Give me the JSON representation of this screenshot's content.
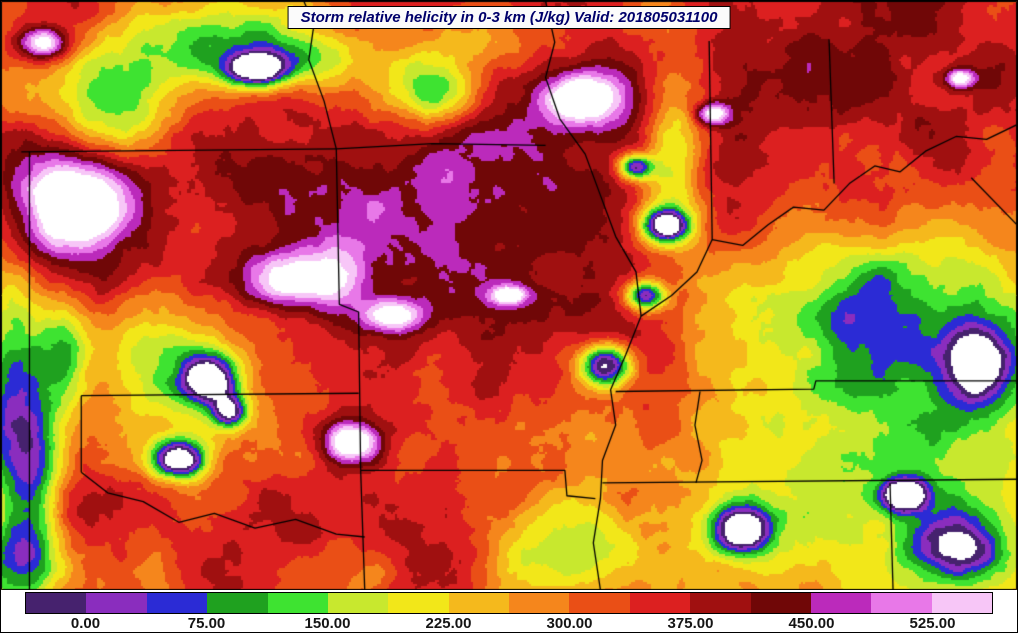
{
  "title_bar": {
    "text": "Storm relative helicity in 0-3 km (J/kg) Valid: 201805031100"
  },
  "chart_data": {
    "type": "heatmap",
    "title": "Storm relative helicity in 0-3 km (J/kg)",
    "valid": "201805031100",
    "units": "J/kg",
    "legend_position": "bottom",
    "colorbar": {
      "range": [
        -37.5,
        562.5
      ],
      "step": 37.5,
      "segment_colors": [
        "#46226e",
        "#8a2dbe",
        "#2b2bd5",
        "#1fa11f",
        "#3ee331",
        "#c8e82e",
        "#f2e719",
        "#f5b91c",
        "#f5861c",
        "#ea4f16",
        "#dc2020",
        "#a01010",
        "#700707",
        "#bb2abb",
        "#e878e8",
        "#f7c6f7"
      ],
      "over_color": "#ffffff",
      "under_color": "#ffffff",
      "tick_labels": [
        "0.00",
        "75.00",
        "150.00",
        "225.00",
        "300.00",
        "375.00",
        "450.00",
        "525.00"
      ],
      "tick_values": [
        0,
        75,
        150,
        225,
        300,
        375,
        450,
        525
      ]
    },
    "field": {
      "base": 330,
      "noise": {
        "freq": 14,
        "octaves": 5,
        "persistence": 0.55,
        "amplitude": 100,
        "seed": 11
      },
      "features": [
        {
          "x": 0.069,
          "y": 0.345,
          "rx": 0.042,
          "ry": 0.058,
          "amp": 380
        },
        {
          "x": 0.04,
          "y": 0.07,
          "rx": 0.018,
          "ry": 0.02,
          "amp": 300
        },
        {
          "x": 0.3,
          "y": 0.47,
          "rx": 0.036,
          "ry": 0.036,
          "amp": 270
        },
        {
          "x": 0.385,
          "y": 0.535,
          "rx": 0.022,
          "ry": 0.02,
          "amp": 230
        },
        {
          "x": 0.345,
          "y": 0.75,
          "rx": 0.02,
          "ry": 0.026,
          "amp": 330
        },
        {
          "x": 0.5,
          "y": 0.5,
          "rx": 0.012,
          "ry": 0.012,
          "amp": 260
        },
        {
          "x": 0.575,
          "y": 0.165,
          "rx": 0.026,
          "ry": 0.03,
          "amp": 330
        },
        {
          "x": 0.7,
          "y": 0.19,
          "rx": 0.012,
          "ry": 0.014,
          "amp": 240
        },
        {
          "x": 0.945,
          "y": 0.13,
          "rx": 0.01,
          "ry": 0.012,
          "amp": 250
        },
        {
          "x": 0.45,
          "y": 0.33,
          "rx": 0.13,
          "ry": 0.13,
          "amp": 85
        },
        {
          "x": 0.63,
          "y": 0.2,
          "rx": 0.09,
          "ry": 0.11,
          "amp": 75
        },
        {
          "x": 0.88,
          "y": 0.16,
          "rx": 0.11,
          "ry": 0.13,
          "amp": 70
        },
        {
          "x": 0.29,
          "y": 0.34,
          "rx": 0.09,
          "ry": 0.08,
          "amp": 55
        },
        {
          "x": 0.52,
          "y": 0.6,
          "rx": 0.09,
          "ry": 0.09,
          "amp": 70
        },
        {
          "x": 0.13,
          "y": 0.47,
          "rx": 0.05,
          "ry": 0.06,
          "amp": 70
        },
        {
          "x": 0.22,
          "y": 0.28,
          "rx": 0.07,
          "ry": 0.06,
          "amp": 50
        },
        {
          "x": 0.44,
          "y": 0.9,
          "rx": 0.08,
          "ry": 0.07,
          "amp": 60
        },
        {
          "x": 0.84,
          "y": 0.8,
          "rx": 0.14,
          "ry": 0.18,
          "amp": -190
        },
        {
          "x": 0.88,
          "y": 0.52,
          "rx": 0.1,
          "ry": 0.11,
          "amp": -200
        },
        {
          "x": 0.21,
          "y": 0.07,
          "rx": 0.06,
          "ry": 0.05,
          "amp": -210
        },
        {
          "x": 0.3,
          "y": 0.095,
          "rx": 0.04,
          "ry": 0.04,
          "amp": -160
        },
        {
          "x": 0.425,
          "y": 0.155,
          "rx": 0.03,
          "ry": 0.04,
          "amp": -270
        },
        {
          "x": 0.47,
          "y": 0.065,
          "rx": 0.05,
          "ry": 0.04,
          "amp": -130
        },
        {
          "x": 0.16,
          "y": 0.6,
          "rx": 0.045,
          "ry": 0.09,
          "amp": -180
        },
        {
          "x": 0.01,
          "y": 0.73,
          "rx": 0.025,
          "ry": 0.14,
          "amp": -280
        },
        {
          "x": 0.06,
          "y": 0.6,
          "rx": 0.02,
          "ry": 0.07,
          "amp": -230
        },
        {
          "x": 0.035,
          "y": 0.82,
          "rx": 0.018,
          "ry": 0.1,
          "amp": -150
        },
        {
          "x": 0.02,
          "y": 0.95,
          "rx": 0.03,
          "ry": 0.05,
          "amp": -170
        },
        {
          "x": 0.55,
          "y": 0.93,
          "rx": 0.05,
          "ry": 0.06,
          "amp": -180
        },
        {
          "x": 0.115,
          "y": 0.17,
          "rx": 0.04,
          "ry": 0.07,
          "amp": -220
        },
        {
          "x": 0.665,
          "y": 0.25,
          "rx": 0.025,
          "ry": 0.12,
          "amp": -200
        },
        {
          "x": 0.25,
          "y": 0.115,
          "rx": 0.022,
          "ry": 0.02,
          "amp": -380
        },
        {
          "x": 0.205,
          "y": 0.645,
          "rx": 0.02,
          "ry": 0.03,
          "amp": -420
        },
        {
          "x": 0.175,
          "y": 0.78,
          "rx": 0.018,
          "ry": 0.022,
          "amp": -400
        },
        {
          "x": 0.225,
          "y": 0.7,
          "rx": 0.012,
          "ry": 0.02,
          "amp": -320
        },
        {
          "x": 0.655,
          "y": 0.38,
          "rx": 0.016,
          "ry": 0.02,
          "amp": -400
        },
        {
          "x": 0.635,
          "y": 0.5,
          "rx": 0.014,
          "ry": 0.018,
          "amp": -380
        },
        {
          "x": 0.595,
          "y": 0.62,
          "rx": 0.018,
          "ry": 0.025,
          "amp": -420
        },
        {
          "x": 0.625,
          "y": 0.28,
          "rx": 0.012,
          "ry": 0.015,
          "amp": -330
        },
        {
          "x": 0.73,
          "y": 0.9,
          "rx": 0.02,
          "ry": 0.028,
          "amp": -400
        },
        {
          "x": 0.89,
          "y": 0.84,
          "rx": 0.016,
          "ry": 0.02,
          "amp": -380
        },
        {
          "x": 0.965,
          "y": 0.62,
          "rx": 0.022,
          "ry": 0.05,
          "amp": -310
        },
        {
          "x": 0.945,
          "y": 0.93,
          "rx": 0.03,
          "ry": 0.04,
          "amp": -270
        }
      ]
    },
    "borders": [
      [
        [
          0.02,
          0.256
        ],
        [
          0.33,
          0.251
        ]
      ],
      [
        [
          0.33,
          0.251
        ],
        [
          0.425,
          0.242
        ],
        [
          0.536,
          0.245
        ]
      ],
      [
        [
          0.33,
          0.251
        ],
        [
          0.318,
          0.17
        ],
        [
          0.303,
          0.1
        ],
        [
          0.308,
          0.04
        ],
        [
          0.298,
          0.0
        ]
      ],
      [
        [
          0.33,
          0.251
        ],
        [
          0.333,
          0.515
        ],
        [
          0.352,
          0.528
        ],
        [
          0.354,
          0.797
        ]
      ],
      [
        [
          0.079,
          0.67
        ],
        [
          0.352,
          0.666
        ]
      ],
      [
        [
          0.079,
          0.67
        ],
        [
          0.079,
          0.8
        ]
      ],
      [
        [
          0.079,
          0.8
        ],
        [
          0.105,
          0.835
        ],
        [
          0.14,
          0.85
        ],
        [
          0.175,
          0.885
        ],
        [
          0.21,
          0.87
        ],
        [
          0.25,
          0.895
        ],
        [
          0.29,
          0.88
        ],
        [
          0.33,
          0.905
        ],
        [
          0.358,
          0.91
        ]
      ],
      [
        [
          0.028,
          0.256
        ],
        [
          0.028,
          1.0
        ]
      ],
      [
        [
          0.354,
          0.797
        ],
        [
          0.358,
          1.0
        ]
      ],
      [
        [
          0.354,
          0.797
        ],
        [
          0.555,
          0.797
        ],
        [
          0.557,
          0.84
        ],
        [
          0.585,
          0.845
        ]
      ],
      [
        [
          0.536,
          0.0
        ],
        [
          0.545,
          0.07
        ],
        [
          0.536,
          0.13
        ],
        [
          0.55,
          0.2
        ],
        [
          0.575,
          0.26
        ],
        [
          0.59,
          0.33
        ],
        [
          0.605,
          0.4
        ],
        [
          0.625,
          0.46
        ],
        [
          0.63,
          0.535
        ],
        [
          0.615,
          0.6
        ],
        [
          0.6,
          0.66
        ],
        [
          0.605,
          0.72
        ],
        [
          0.592,
          0.78
        ],
        [
          0.59,
          0.845
        ],
        [
          0.583,
          0.92
        ],
        [
          0.59,
          1.0
        ]
      ],
      [
        [
          0.697,
          0.068
        ],
        [
          0.7,
          0.405
        ]
      ],
      [
        [
          0.63,
          0.535
        ],
        [
          0.66,
          0.5
        ],
        [
          0.685,
          0.46
        ],
        [
          0.7,
          0.405
        ],
        [
          0.73,
          0.415
        ],
        [
          0.755,
          0.38
        ],
        [
          0.78,
          0.35
        ],
        [
          0.81,
          0.355
        ],
        [
          0.835,
          0.31
        ],
        [
          0.86,
          0.28
        ],
        [
          0.885,
          0.29
        ],
        [
          0.91,
          0.255
        ],
        [
          0.94,
          0.23
        ],
        [
          0.97,
          0.235
        ],
        [
          1.0,
          0.21
        ]
      ],
      [
        [
          0.815,
          0.065
        ],
        [
          0.82,
          0.31
        ]
      ],
      [
        [
          0.605,
          0.663
        ],
        [
          0.8,
          0.659
        ],
        [
          0.802,
          0.645
        ],
        [
          1.0,
          0.645
        ]
      ],
      [
        [
          0.592,
          0.818
        ],
        [
          1.0,
          0.812
        ]
      ],
      [
        [
          0.875,
          0.818
        ],
        [
          0.878,
          1.0
        ]
      ],
      [
        [
          0.688,
          0.663
        ],
        [
          0.683,
          0.72
        ],
        [
          0.69,
          0.78
        ],
        [
          0.684,
          0.818
        ]
      ],
      [
        [
          0.955,
          0.3
        ],
        [
          1.0,
          0.38
        ]
      ]
    ]
  }
}
